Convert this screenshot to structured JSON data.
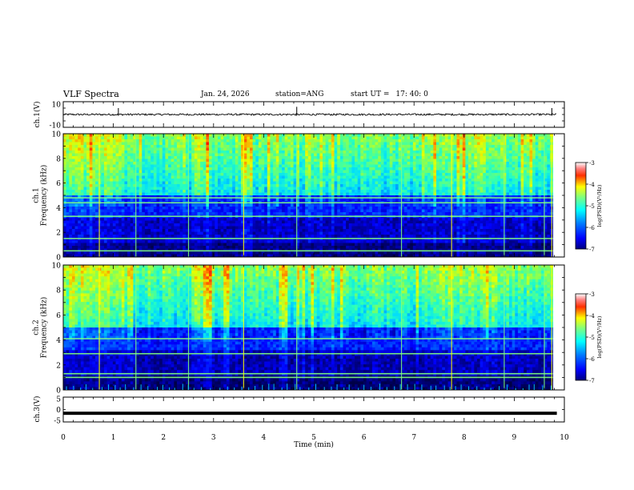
{
  "header": {
    "title": "VLF Spectra",
    "date": "Jan. 24, 2026",
    "station_label": "station=",
    "station": "ANG",
    "start_label": "start UT =",
    "start_time": "17: 40: 0"
  },
  "chart_data": [
    {
      "type": "line",
      "panel": "ch1-waveform",
      "ylabel": "ch.1(V)",
      "ylim": [
        -10,
        10
      ],
      "yticks": [
        "10",
        "-10"
      ],
      "xlim": [
        0,
        10
      ],
      "baseline": 0,
      "spikes_x": [
        1.1,
        4.66,
        9.75
      ]
    },
    {
      "type": "heatmap",
      "panel": "ch1-spectrogram",
      "ylabel": "ch.1\nFrequency (kHz)",
      "ylim": [
        0,
        10
      ],
      "yticks": [
        "0",
        "2",
        "4",
        "6",
        "8",
        "10"
      ],
      "xlim": [
        0,
        10
      ],
      "colorbar": {
        "label": "log(PSD)(V²/Hz)",
        "range": [
          -7,
          -3
        ],
        "ticks": [
          "-3",
          "-4",
          "-5",
          "-6",
          "-7"
        ]
      },
      "bright_bands_khz": [
        0.5,
        1.5,
        3.3,
        4.4,
        4.8
      ],
      "bright_lines_min": [
        0.72,
        1.45,
        2.5,
        3.6,
        4.66,
        6.75,
        7.75,
        8.8,
        9.6,
        9.75
      ]
    },
    {
      "type": "heatmap",
      "panel": "ch2-spectrogram",
      "ylabel": "ch.2\nFrequency (kHz)",
      "ylim": [
        0,
        10
      ],
      "yticks": [
        "0",
        "2",
        "4",
        "6",
        "8",
        "10"
      ],
      "xlim": [
        0,
        10
      ],
      "colorbar": {
        "label": "log(PSD)(V²/Hz)",
        "range": [
          -7,
          -3
        ],
        "ticks": [
          "-3",
          "-4",
          "-5",
          "-6",
          "-7"
        ]
      },
      "bright_bands_khz": [
        1.0,
        1.3,
        2.9,
        4.1
      ],
      "bright_lines_min": [
        0.72,
        1.45,
        2.5,
        3.6,
        4.66,
        6.75,
        7.75,
        8.8,
        9.6,
        9.75
      ]
    },
    {
      "type": "line",
      "panel": "ch3-waveform",
      "ylabel": "ch.3(V)",
      "ylim": [
        -5,
        5
      ],
      "yticks": [
        "5",
        "0",
        "-5"
      ],
      "xlim": [
        0,
        10
      ],
      "baseline": -1.5
    }
  ],
  "xaxis": {
    "label": "Time (min)",
    "ticks": [
      "0",
      "1",
      "2",
      "3",
      "4",
      "5",
      "6",
      "7",
      "8",
      "9",
      "10"
    ]
  },
  "colors": {
    "colormap": [
      "#000000",
      "#00007f",
      "#0000ff",
      "#007fff",
      "#00ffff",
      "#7fff7f",
      "#ffff00",
      "#ff7f00",
      "#ff0000",
      "#ffffff"
    ]
  }
}
